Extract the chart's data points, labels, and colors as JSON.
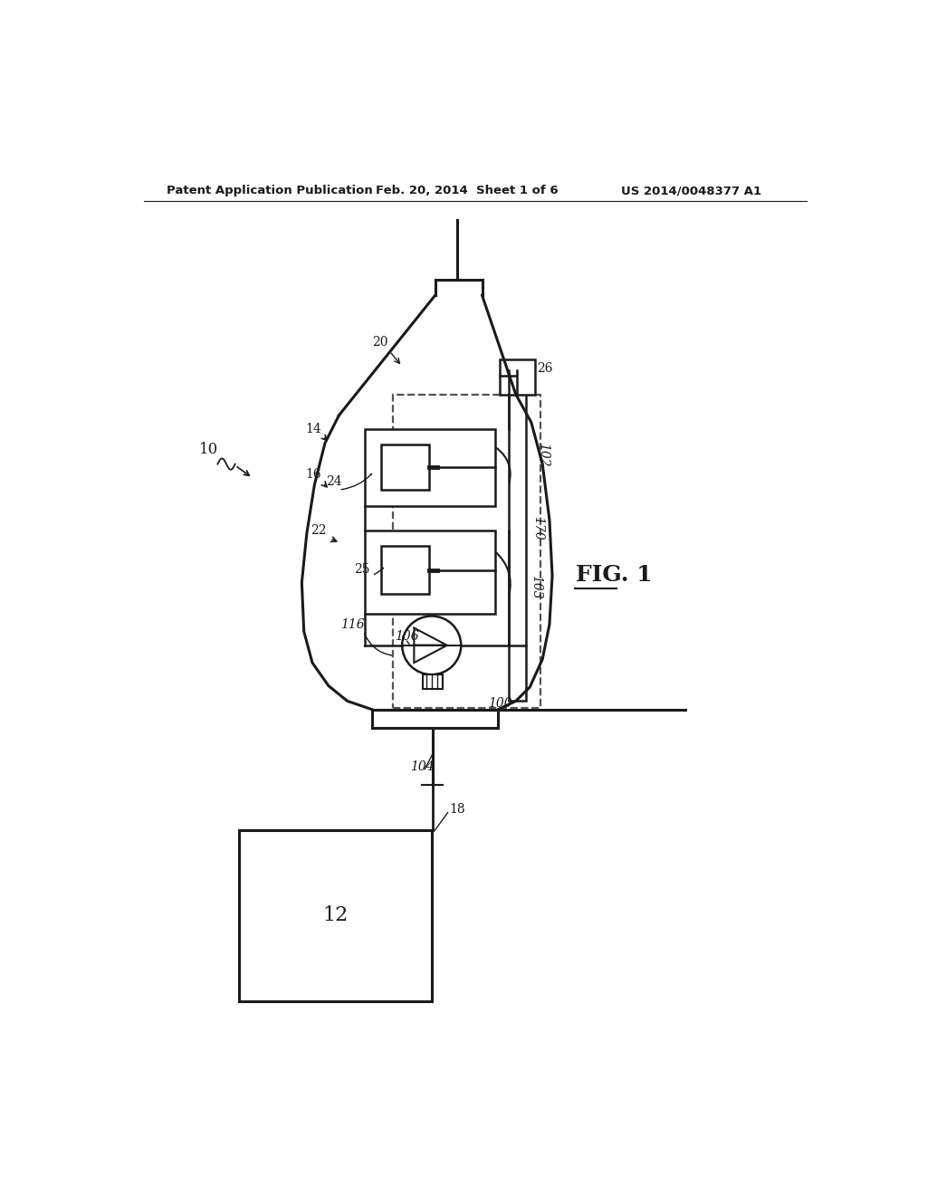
{
  "bg_color": "#ffffff",
  "lc": "#1a1a1a",
  "dc": "#555555",
  "header_left": "Patent Application Publication",
  "header_mid": "Feb. 20, 2014  Sheet 1 of 6",
  "header_right": "US 2014/0048377 A1",
  "fig_label": "FIG. 1",
  "ref_10": "10",
  "ref_12": "12",
  "ref_14": "14",
  "ref_16": "16",
  "ref_18": "18",
  "ref_20": "20",
  "ref_22": "22",
  "ref_24": "24",
  "ref_25": "25",
  "ref_26": "26",
  "ref_100": "100",
  "ref_102": "102",
  "ref_103": "103",
  "ref_104": "104",
  "ref_106": "106",
  "ref_116": "116",
  "ref_170": "170"
}
